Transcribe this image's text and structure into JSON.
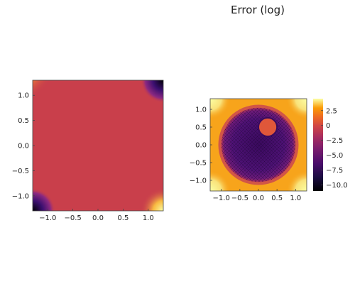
{
  "chart_data": [
    {
      "type": "heatmap",
      "title": "",
      "xlabel": "",
      "ylabel": "",
      "xlim": [
        -1.3,
        1.3
      ],
      "ylim": [
        -1.3,
        1.3
      ],
      "xticks": [
        "−1.0",
        "−0.5",
        "0.0",
        "0.5",
        "1.0"
      ],
      "xtick_values": [
        -1.0,
        -0.5,
        0.0,
        0.5,
        1.0
      ],
      "yticks": [
        "1.0",
        "0.5",
        "0.0",
        "−0.5",
        "−1.0"
      ],
      "ytick_values": [
        1.0,
        0.5,
        0.0,
        -0.5,
        -1.0
      ],
      "background_color": "#c93f4b",
      "corner_features": [
        {
          "corner": "top-left",
          "x": -1.3,
          "y": 1.3
        },
        {
          "corner": "top-right",
          "x": 1.3,
          "y": 1.3
        },
        {
          "corner": "bottom-left",
          "x": -1.3,
          "y": -1.3
        },
        {
          "corner": "bottom-right",
          "x": 1.3,
          "y": -1.3
        }
      ],
      "colorbar": false
    },
    {
      "type": "heatmap",
      "title": "Error (log)",
      "xlabel": "",
      "ylabel": "",
      "xlim": [
        -1.3,
        1.3
      ],
      "ylim": [
        -1.3,
        1.3
      ],
      "xticks": [
        "−1.0",
        "−0.5",
        "0.0",
        "0.5",
        "1.0"
      ],
      "xtick_values": [
        -1.0,
        -0.5,
        0.0,
        0.5,
        1.0
      ],
      "yticks": [
        "1.0",
        "0.5",
        "0.0",
        "−0.5",
        "−1.0"
      ],
      "ytick_values": [
        1.0,
        0.5,
        0.0,
        -0.5,
        -1.0
      ],
      "features": {
        "disk": {
          "cx": 0.0,
          "cy": 0.0,
          "r": 1.0
        },
        "hole": {
          "cx": 0.25,
          "cy": 0.5,
          "r": 0.25
        }
      },
      "colorbar": true,
      "colorbar_range": [
        -11,
        4.5
      ],
      "colorbar_ticks": [
        "2.5",
        "0",
        "−2.5",
        "−5.0",
        "−7.5",
        "−10.0"
      ],
      "colorbar_tick_values": [
        2.5,
        0,
        -2.5,
        -5.0,
        -7.5,
        -10.0
      ],
      "colorscale": "inferno"
    }
  ]
}
